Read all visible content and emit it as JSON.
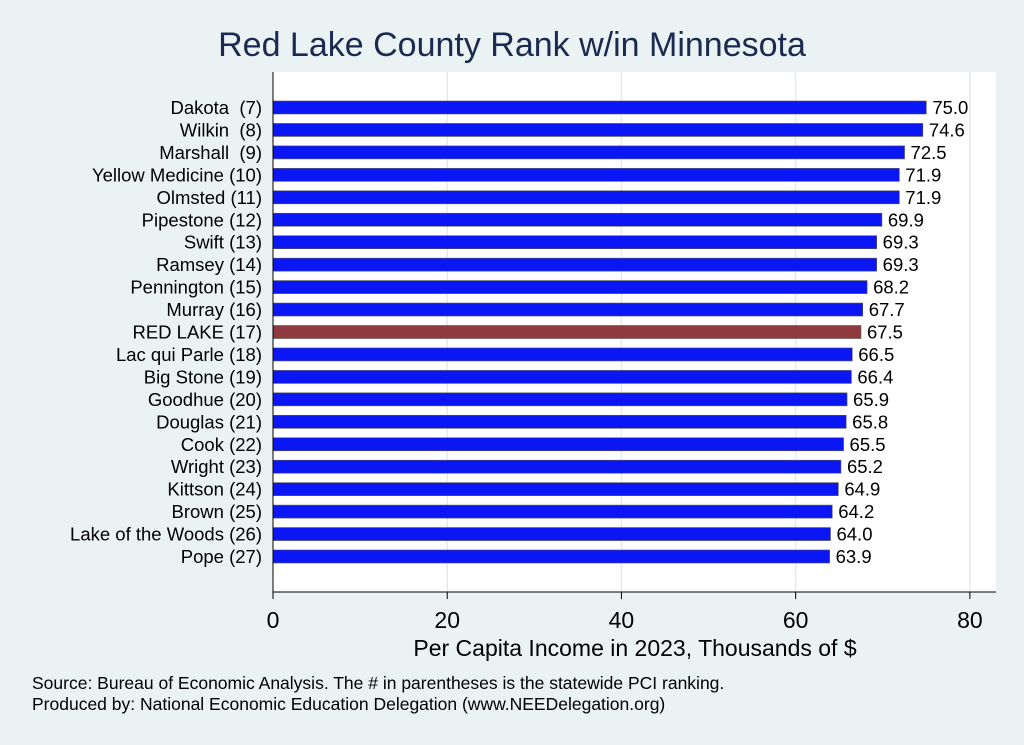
{
  "chart_data": {
    "type": "bar",
    "orientation": "horizontal",
    "title": "Red Lake County Rank w/in Minnesota",
    "xlabel": "Per Capita Income in 2023, Thousands of $",
    "xlim": [
      0,
      83
    ],
    "xticks": [
      0,
      20,
      40,
      60,
      80
    ],
    "grid": true,
    "categories": [
      "Dakota  (7)",
      "Wilkin  (8)",
      "Marshall  (9)",
      "Yellow Medicine (10)",
      "Olmsted (11)",
      "Pipestone (12)",
      "Swift (13)",
      "Ramsey (14)",
      "Pennington (15)",
      "Murray (16)",
      "RED LAKE (17)",
      "Lac qui Parle (18)",
      "Big Stone (19)",
      "Goodhue (20)",
      "Douglas (21)",
      "Cook (22)",
      "Wright (23)",
      "Kittson (24)",
      "Brown (25)",
      "Lake of the Woods (26)",
      "Pope (27)"
    ],
    "values": [
      75.0,
      74.6,
      72.5,
      71.9,
      71.9,
      69.9,
      69.3,
      69.3,
      68.2,
      67.7,
      67.5,
      66.5,
      66.4,
      65.9,
      65.8,
      65.5,
      65.2,
      64.9,
      64.2,
      64.0,
      63.9
    ],
    "value_labels": [
      "75.0",
      "74.6",
      "72.5",
      "71.9",
      "71.9",
      "69.9",
      "69.3",
      "69.3",
      "68.2",
      "67.7",
      "67.5",
      "66.5",
      "66.4",
      "65.9",
      "65.8",
      "65.5",
      "65.2",
      "64.9",
      "64.2",
      "64.0",
      "63.9"
    ],
    "highlight": "RED LAKE (17)",
    "colors": {
      "bar": "#0b16f5",
      "highlight": "#8e3a3f",
      "background": "#eaf2f3",
      "plot_bg": "#ffffff",
      "grid": "#e2ebee",
      "title": "#1a2a50"
    }
  },
  "notes": {
    "source": "Source: Bureau of Economic Analysis. The # in parentheses is the statewide PCI ranking.",
    "producer": "Produced by: National Economic Education Delegation (www.NEEDelegation.org)"
  }
}
